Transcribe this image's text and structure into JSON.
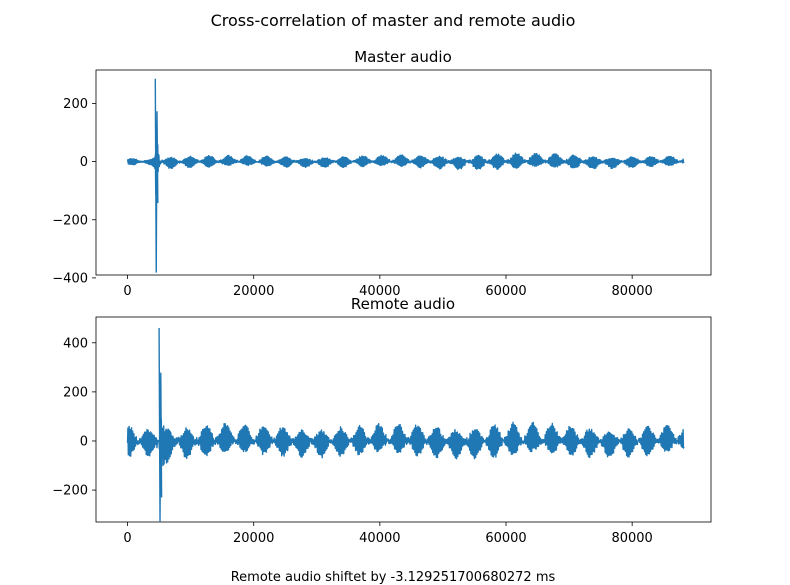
{
  "figure": {
    "title": "Cross-correlation of master and remote audio",
    "footer": "Remote audio shiftet by -3.129251700680272 ms",
    "line_color": "#1f77b4"
  },
  "chart_data": [
    {
      "type": "line",
      "title": "Master audio",
      "xlim": [
        -5000,
        92500
      ],
      "ylim": [
        -390,
        315
      ],
      "xticks": [
        0,
        20000,
        40000,
        60000,
        80000
      ],
      "xtick_labels": [
        "0",
        "20000",
        "40000",
        "60000",
        "80000"
      ],
      "yticks": [
        -400,
        -200,
        0,
        200
      ],
      "ytick_labels": [
        "−400",
        "−200",
        "0",
        "200"
      ],
      "grid": false,
      "x_range": [
        0,
        88200
      ],
      "series": [
        {
          "envelope": [
            {
              "x": 0,
              "amp": 12
            },
            {
              "x": 3800,
              "amp": 10
            },
            {
              "x": 4400,
              "amp": 30
            },
            {
              "x": 4550,
              "amp": 285,
              "min": -380
            },
            {
              "x": 4800,
              "amp": 180
            },
            {
              "x": 5200,
              "amp": 55
            },
            {
              "x": 6000,
              "amp": 22
            },
            {
              "x": 20000,
              "amp": 18
            },
            {
              "x": 40000,
              "amp": 20
            },
            {
              "x": 60000,
              "amp": 28
            },
            {
              "x": 70000,
              "amp": 26
            },
            {
              "x": 80000,
              "amp": 20
            },
            {
              "x": 88200,
              "amp": 18
            }
          ]
        }
      ]
    },
    {
      "type": "line",
      "title": "Remote audio",
      "xlim": [
        -5000,
        92500
      ],
      "ylim": [
        -330,
        505
      ],
      "xticks": [
        0,
        20000,
        40000,
        60000,
        80000
      ],
      "xtick_labels": [
        "0",
        "20000",
        "40000",
        "60000",
        "80000"
      ],
      "yticks": [
        -200,
        0,
        200,
        400
      ],
      "ytick_labels": [
        "−200",
        "0",
        "200",
        "400"
      ],
      "grid": false,
      "x_range": [
        0,
        88200
      ],
      "series": [
        {
          "envelope": [
            {
              "x": 0,
              "amp": 65
            },
            {
              "x": 4400,
              "amp": 60
            },
            {
              "x": 5000,
              "amp": 180
            },
            {
              "x": 5150,
              "amp": 460,
              "min": -325
            },
            {
              "x": 5500,
              "amp": 220
            },
            {
              "x": 6000,
              "amp": 90
            },
            {
              "x": 7000,
              "amp": 68
            },
            {
              "x": 30000,
              "amp": 62
            },
            {
              "x": 60000,
              "amp": 72
            },
            {
              "x": 70000,
              "amp": 65
            },
            {
              "x": 88200,
              "amp": 60
            }
          ]
        }
      ]
    }
  ]
}
